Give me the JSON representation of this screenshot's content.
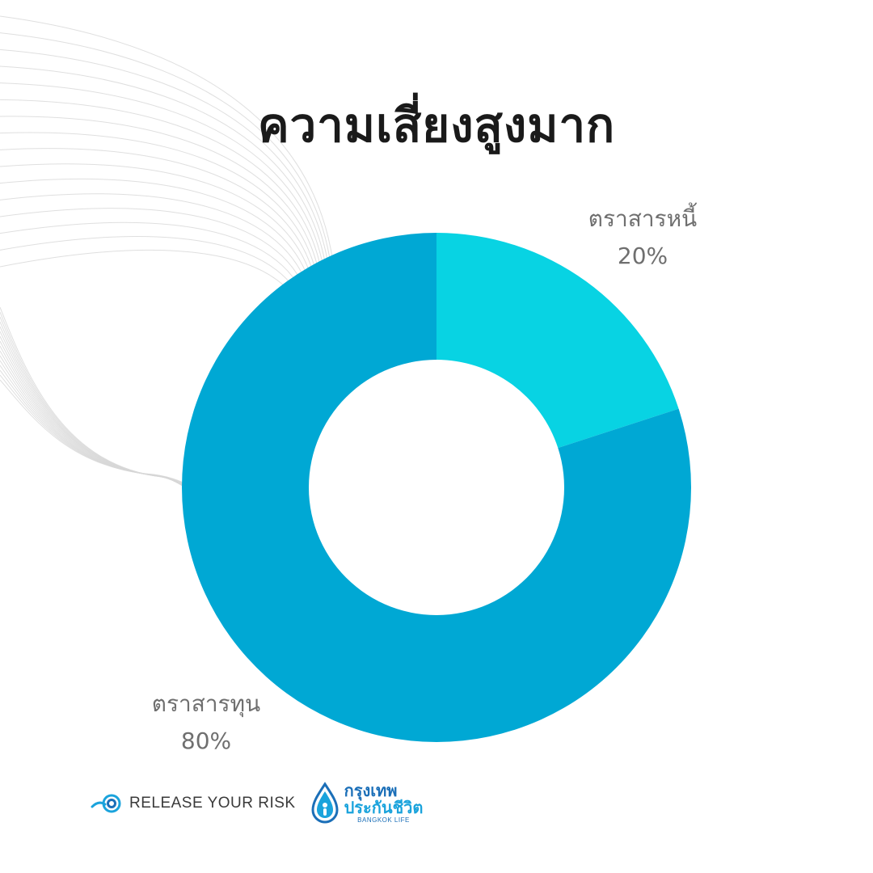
{
  "title": "ความเสี่ยงสูงมาก",
  "chart_data": {
    "type": "pie",
    "variant": "donut",
    "title": "ความเสี่ยงสูงมาก",
    "slices": [
      {
        "label": "ตราสารหนี้",
        "value": 20,
        "display": "20%",
        "color": "#08d3e3"
      },
      {
        "label": "ตราสารทุน",
        "value": 80,
        "display": "80%",
        "color": "#00a8d4"
      }
    ]
  },
  "footer": {
    "brand_text": "RELEASE YOUR RISK",
    "partner_line1": "กรุงเทพ",
    "partner_line2": "ประกันชีวิต",
    "partner_line3": "BANGKOK LIFE"
  }
}
